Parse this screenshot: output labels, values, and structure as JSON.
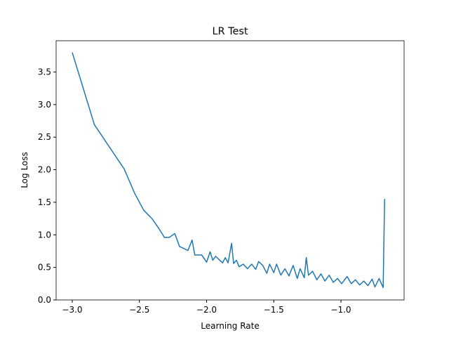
{
  "chart_data": {
    "type": "line",
    "title": "LR Test",
    "x_label": "Learning Rate",
    "y_label": "Log Loss",
    "xlim": [
      -3.12,
      -0.53
    ],
    "ylim": [
      0.0,
      3.98
    ],
    "xticks": [
      {
        "value": -3.0,
        "label": "−3.0"
      },
      {
        "value": -2.5,
        "label": "−2.5"
      },
      {
        "value": -2.0,
        "label": "−2.0"
      },
      {
        "value": -1.5,
        "label": "−1.5"
      },
      {
        "value": -1.0,
        "label": "−1.0"
      }
    ],
    "yticks": [
      {
        "value": 0.0,
        "label": "0.0"
      },
      {
        "value": 0.5,
        "label": "0.5"
      },
      {
        "value": 1.0,
        "label": "1.0"
      },
      {
        "value": 1.5,
        "label": "1.5"
      },
      {
        "value": 2.0,
        "label": "2.0"
      },
      {
        "value": 2.5,
        "label": "2.5"
      },
      {
        "value": 3.0,
        "label": "3.0"
      },
      {
        "value": 3.5,
        "label": "3.5"
      }
    ],
    "grid": false,
    "series": [
      {
        "color": "#1f77b4",
        "x": [
          -3.0,
          -2.835,
          -2.613,
          -2.536,
          -2.469,
          -2.407,
          -2.356,
          -2.314,
          -2.278,
          -2.237,
          -2.201,
          -2.139,
          -2.108,
          -2.088,
          -2.036,
          -2.0,
          -1.974,
          -1.954,
          -1.933,
          -1.902,
          -1.881,
          -1.861,
          -1.84,
          -1.814,
          -1.799,
          -1.778,
          -1.758,
          -1.727,
          -1.696,
          -1.665,
          -1.634,
          -1.613,
          -1.582,
          -1.552,
          -1.531,
          -1.5,
          -1.479,
          -1.448,
          -1.417,
          -1.387,
          -1.356,
          -1.325,
          -1.304,
          -1.273,
          -1.258,
          -1.242,
          -1.211,
          -1.18,
          -1.149,
          -1.119,
          -1.088,
          -1.057,
          -1.026,
          -0.995,
          -0.954,
          -0.923,
          -0.892,
          -0.861,
          -0.83,
          -0.799,
          -0.768,
          -0.747,
          -0.716,
          -0.686,
          -0.675
        ],
        "values": [
          3.8,
          2.69,
          2.01,
          1.64,
          1.38,
          1.25,
          1.1,
          0.96,
          0.96,
          1.02,
          0.82,
          0.76,
          0.92,
          0.69,
          0.69,
          0.58,
          0.74,
          0.61,
          0.67,
          0.61,
          0.57,
          0.65,
          0.57,
          0.87,
          0.56,
          0.61,
          0.51,
          0.55,
          0.48,
          0.55,
          0.47,
          0.59,
          0.53,
          0.41,
          0.55,
          0.42,
          0.55,
          0.38,
          0.48,
          0.37,
          0.53,
          0.33,
          0.48,
          0.34,
          0.65,
          0.38,
          0.44,
          0.31,
          0.4,
          0.29,
          0.38,
          0.27,
          0.33,
          0.25,
          0.36,
          0.25,
          0.31,
          0.23,
          0.29,
          0.22,
          0.32,
          0.2,
          0.33,
          0.19,
          1.55
        ]
      }
    ]
  }
}
